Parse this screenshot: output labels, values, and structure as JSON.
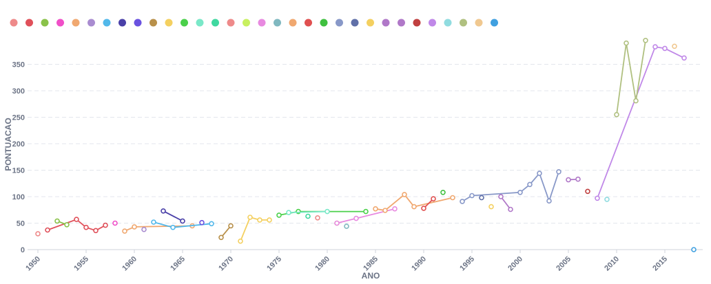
{
  "chart_data": {
    "type": "line",
    "xlabel": "ANO",
    "ylabel": "PONTUACAO",
    "xlim": [
      1949,
      2019
    ],
    "ylim": [
      0,
      400
    ],
    "x_ticks": [
      1950,
      1955,
      1960,
      1965,
      1970,
      1975,
      1980,
      1985,
      1990,
      1995,
      2000,
      2005,
      2010,
      2015
    ],
    "y_ticks": [
      0,
      50,
      100,
      150,
      200,
      250,
      300,
      350
    ],
    "grid": true,
    "legend_position": "top-left",
    "series": [
      {
        "color": "#ee8a8a",
        "points": [
          [
            1950,
            30
          ]
        ]
      },
      {
        "color": "#e0505a",
        "points": [
          [
            1951,
            37
          ],
          [
            1954,
            57
          ],
          [
            1955,
            42
          ],
          [
            1956,
            36
          ],
          [
            1957,
            46
          ]
        ]
      },
      {
        "color": "#8ac24a",
        "points": [
          [
            1952,
            54
          ],
          [
            1953,
            47
          ]
        ]
      },
      {
        "color": "#f04fc8",
        "points": [
          [
            1958,
            50
          ]
        ]
      },
      {
        "color": "#f0a870",
        "points": [
          [
            1959,
            35
          ],
          [
            1960,
            43
          ],
          [
            1966,
            45
          ]
        ]
      },
      {
        "color": "#a98cd0",
        "points": [
          [
            1961,
            38
          ]
        ]
      },
      {
        "color": "#52b8ea",
        "points": [
          [
            1962,
            52
          ],
          [
            1964,
            42
          ],
          [
            1968,
            49
          ]
        ]
      },
      {
        "color": "#4a40a8",
        "points": [
          [
            1963,
            73
          ],
          [
            1965,
            54
          ]
        ]
      },
      {
        "color": "#6a52e0",
        "points": [
          [
            1967,
            51
          ]
        ]
      },
      {
        "color": "#b8904a",
        "points": [
          [
            1969,
            23
          ],
          [
            1970,
            45
          ]
        ]
      },
      {
        "color": "#f4d060",
        "points": [
          [
            1971,
            16
          ],
          [
            1972,
            61
          ],
          [
            1973,
            56
          ],
          [
            1974,
            56
          ]
        ]
      },
      {
        "color": "#4ad04a",
        "points": [
          [
            1975,
            65
          ],
          [
            1977,
            72
          ],
          [
            1984,
            72
          ]
        ]
      },
      {
        "color": "#7ae8c8",
        "points": [
          [
            1976,
            70
          ],
          [
            1980,
            72
          ]
        ]
      },
      {
        "color": "#40d8a0",
        "points": [
          [
            1978,
            63
          ]
        ]
      },
      {
        "color": "#ee8a8a",
        "points": [
          [
            1979,
            60
          ]
        ]
      },
      {
        "color": "#c8f060",
        "points": [
          [
            1981,
            50
          ]
        ]
      },
      {
        "color": "#e88ae0",
        "points": [
          [
            1981,
            50
          ],
          [
            1983,
            59
          ],
          [
            1987,
            77
          ]
        ]
      },
      {
        "color": "#80b8c0",
        "points": [
          [
            1982,
            44
          ]
        ]
      },
      {
        "color": "#f0a870",
        "points": [
          [
            1985,
            77
          ],
          [
            1986,
            74
          ],
          [
            1988,
            104
          ],
          [
            1989,
            81
          ],
          [
            1993,
            98
          ]
        ]
      },
      {
        "color": "#e05050",
        "points": [
          [
            1990,
            78
          ],
          [
            1991,
            96
          ]
        ]
      },
      {
        "color": "#40c040",
        "points": [
          [
            1992,
            108
          ]
        ]
      },
      {
        "color": "#8898c8",
        "points": [
          [
            1994,
            91
          ],
          [
            1995,
            102
          ],
          [
            2000,
            108
          ],
          [
            2001,
            123
          ],
          [
            2002,
            144
          ],
          [
            2003,
            92
          ],
          [
            2004,
            147
          ]
        ]
      },
      {
        "color": "#6070a8",
        "points": [
          [
            1996,
            98
          ]
        ]
      },
      {
        "color": "#f4d060",
        "points": [
          [
            1997,
            81
          ]
        ]
      },
      {
        "color": "#b078c8",
        "points": [
          [
            1998,
            100
          ],
          [
            1999,
            76
          ]
        ]
      },
      {
        "color": "#b078c8",
        "points": [
          [
            2005,
            132
          ],
          [
            2006,
            133
          ]
        ]
      },
      {
        "color": "#c04040",
        "points": [
          [
            2007,
            110
          ]
        ]
      },
      {
        "color": "#c088e8",
        "points": [
          [
            2008,
            97
          ],
          [
            2014,
            383
          ],
          [
            2015,
            380
          ],
          [
            2017,
            362
          ]
        ]
      },
      {
        "color": "#90dce0",
        "points": [
          [
            2009,
            95
          ]
        ]
      },
      {
        "color": "#b0c080",
        "points": [
          [
            2010,
            255
          ],
          [
            2011,
            390
          ],
          [
            2012,
            281
          ],
          [
            2013,
            395
          ]
        ]
      },
      {
        "color": "#f0c890",
        "points": [
          [
            2016,
            384
          ]
        ]
      },
      {
        "color": "#40a0e0",
        "points": [
          [
            2018,
            0
          ]
        ]
      }
    ]
  }
}
